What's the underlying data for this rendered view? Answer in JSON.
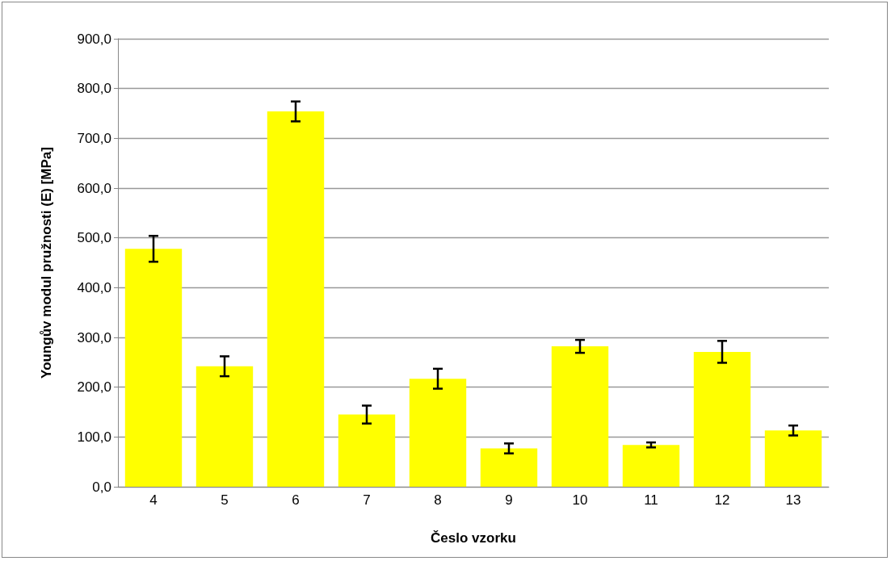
{
  "chart_data": {
    "type": "bar",
    "xlabel": "Česlo vzorku",
    "ylabel": "Youngův modul pružnosti (E) [MPa]",
    "categories": [
      "4",
      "5",
      "6",
      "7",
      "8",
      "9",
      "10",
      "11",
      "12",
      "13"
    ],
    "values": [
      478,
      242,
      754,
      145,
      217,
      77,
      282,
      84,
      271,
      113
    ],
    "errors": [
      26,
      20,
      20,
      18,
      20,
      10,
      13,
      5,
      22,
      10
    ],
    "color": "#ffff00",
    "ylim": [
      0,
      900
    ],
    "yticks": [
      {
        "value": 0,
        "label": "0,0"
      },
      {
        "value": 100,
        "label": "100,0"
      },
      {
        "value": 200,
        "label": "200,0"
      },
      {
        "value": 300,
        "label": "300,0"
      },
      {
        "value": 400,
        "label": "400,0"
      },
      {
        "value": 500,
        "label": "500,0"
      },
      {
        "value": 600,
        "label": "600,0"
      },
      {
        "value": 700,
        "label": "700,0"
      },
      {
        "value": 800,
        "label": "800,0"
      },
      {
        "value": 900,
        "label": "900,0"
      }
    ],
    "grid": "y"
  }
}
